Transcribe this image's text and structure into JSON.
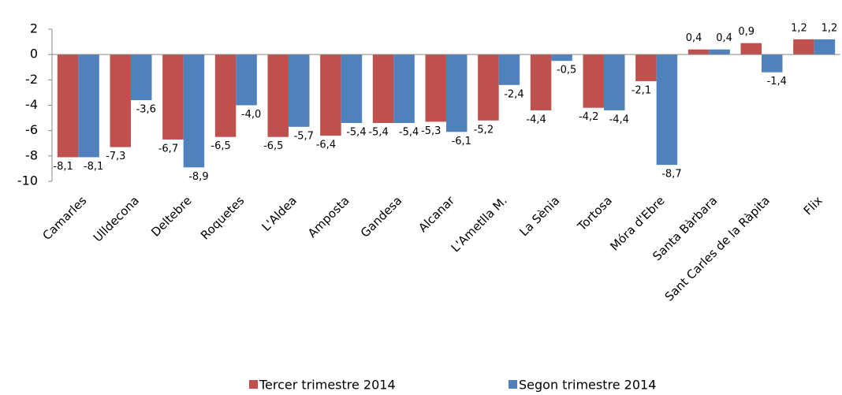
{
  "chart_data": {
    "type": "bar",
    "categories": [
      "Camarles",
      "Ulldecona",
      "Deltebre",
      "Roquetes",
      "L'Aldea",
      "Amposta",
      "Gandesa",
      "Alcanar",
      "L'Ametlla M.",
      "La Sènia",
      "Tortosa",
      "Móra d'Ebre",
      "Santa Bàrbara",
      "Sant Carles de la Ràpita",
      "Flix"
    ],
    "series": [
      {
        "name": "Tercer trimestre 2014",
        "color": "#c0504d",
        "values": [
          -8.1,
          -7.3,
          -6.7,
          -6.5,
          -6.5,
          -6.4,
          -5.4,
          -5.3,
          -5.2,
          -4.4,
          -4.2,
          -2.1,
          0.4,
          0.9,
          1.2
        ],
        "value_labels": [
          "-8,1",
          "-7,3",
          "-6,7",
          "-6,5",
          "-6,5",
          "-6,4",
          "-5,4",
          "-5,3",
          "-5,2",
          "-4,4",
          "-4,2",
          "-2,1",
          "0,4",
          "0,9",
          "1,2"
        ]
      },
      {
        "name": "Segon trimestre 2014",
        "color": "#4f81bd",
        "values": [
          -8.1,
          -3.6,
          -8.9,
          -4.0,
          -5.7,
          -5.4,
          -5.4,
          -6.1,
          -2.4,
          -0.5,
          -4.4,
          -8.7,
          0.4,
          -1.4,
          1.2
        ],
        "value_labels": [
          "-8,1",
          "-3,6",
          "-8,9",
          "-4,0",
          "-5,7",
          "-5,4",
          "-5,4",
          "-6,1",
          "-2,4",
          "-0,5",
          "-4,4",
          "-8,7",
          "0,4",
          "-1,4",
          "1,2"
        ]
      }
    ],
    "ylim": [
      -10,
      2
    ],
    "yticks": [
      2,
      0,
      -2,
      -4,
      -6,
      -8,
      -10
    ],
    "legend": "bottom",
    "grid": false
  }
}
